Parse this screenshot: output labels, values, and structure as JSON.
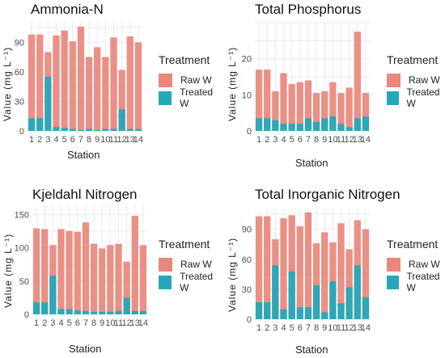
{
  "legend_title": "Treatment",
  "axis_x_label": "Station",
  "axis_y_label": "Value (mg L⁻¹)",
  "colors": {
    "raw": "#E8877C",
    "treated": "#25A9B8"
  },
  "chart_data": [
    {
      "type": "bar",
      "title": "Ammonia-N",
      "xlabel": "Station",
      "ylabel": "Value (mg L⁻¹)",
      "categories": [
        "1",
        "2",
        "3",
        "4",
        "5",
        "6",
        "7",
        "8",
        "9",
        "10",
        "11",
        "12",
        "13",
        "14"
      ],
      "ylim": [
        0,
        110
      ],
      "yticks": [
        0,
        30,
        60,
        90
      ],
      "series": [
        {
          "name": "Raw W",
          "values": [
            98,
            98,
            80,
            97,
            102,
            91,
            106,
            75,
            85,
            75,
            95,
            62,
            96,
            90
          ]
        },
        {
          "name": "Treated W",
          "values": [
            13,
            13,
            55,
            4,
            3,
            2,
            1,
            2,
            1,
            2,
            2,
            22,
            2,
            2
          ]
        }
      ],
      "legend": "right"
    },
    {
      "type": "bar",
      "title": "Total Phosphorus",
      "xlabel": "Station",
      "ylabel": "Value (mg L⁻¹)",
      "categories": [
        "1",
        "2",
        "3",
        "4",
        "5",
        "6",
        "7",
        "8",
        "9",
        "10",
        "11",
        "12",
        "13",
        "14"
      ],
      "ylim": [
        0,
        30
      ],
      "yticks": [
        0,
        10,
        20
      ],
      "series": [
        {
          "name": "Raw W",
          "values": [
            17,
            17,
            11,
            16,
            13,
            13.5,
            14,
            10.5,
            11,
            13.5,
            10.5,
            12,
            27.5,
            10.5
          ]
        },
        {
          "name": "Treated W",
          "values": [
            3.5,
            3.5,
            3,
            2,
            2,
            2,
            3.5,
            2.5,
            3.5,
            4,
            2,
            1,
            3.5,
            4
          ]
        }
      ],
      "legend": "right"
    },
    {
      "type": "bar",
      "title": "Kjeldahl Nitrogen",
      "xlabel": "Station",
      "ylabel": "Value (mg L⁻¹)",
      "categories": [
        "1",
        "2",
        "3",
        "4",
        "5",
        "6",
        "7",
        "8",
        "9",
        "10",
        "11",
        "12",
        "13",
        "14"
      ],
      "ylim": [
        0,
        165
      ],
      "yticks": [
        0,
        50,
        100,
        150
      ],
      "series": [
        {
          "name": "Raw W",
          "values": [
            129,
            128,
            104,
            128,
            125,
            124,
            138,
            106,
            99,
            104,
            106,
            79,
            148,
            104
          ]
        },
        {
          "name": "Treated W",
          "values": [
            18,
            18,
            58,
            8,
            8,
            6,
            5,
            4,
            4,
            4,
            5,
            25,
            5,
            5
          ]
        }
      ],
      "legend": "right"
    },
    {
      "type": "bar",
      "title": "Total Inorganic Nitrogen",
      "xlabel": "Station",
      "ylabel": "Value (mg L⁻¹)",
      "categories": [
        "1",
        "2",
        "3",
        "4",
        "5",
        "6",
        "7",
        "8",
        "9",
        "10",
        "11",
        "12",
        "13",
        "14"
      ],
      "ylim": [
        0,
        110
      ],
      "yticks": [
        0,
        30,
        60,
        90
      ],
      "series": [
        {
          "name": "Raw W",
          "values": [
            103,
            103,
            80,
            101,
            104,
            93,
            107,
            76,
            87,
            77,
            96,
            70,
            99,
            90
          ]
        },
        {
          "name": "Treated W",
          "values": [
            17,
            17,
            54,
            10,
            48,
            12,
            12,
            34,
            7,
            38,
            16,
            32,
            54,
            22
          ]
        }
      ],
      "legend": "right"
    }
  ]
}
